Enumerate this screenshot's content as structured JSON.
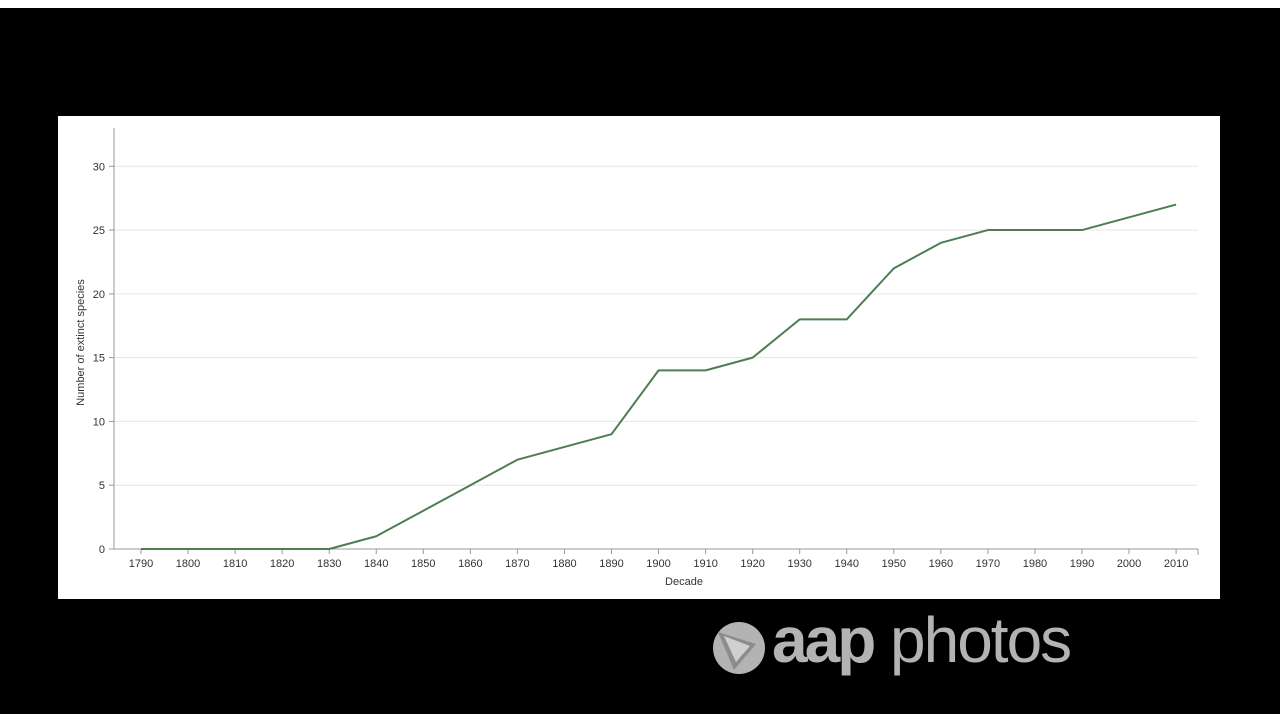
{
  "chart_data": {
    "type": "line",
    "title": "",
    "xlabel": "Decade",
    "ylabel": "Number of extinct species",
    "x": [
      "1790",
      "1800",
      "1810",
      "1820",
      "1830",
      "1840",
      "1850",
      "1860",
      "1870",
      "1880",
      "1890",
      "1900",
      "1910",
      "1920",
      "1930",
      "1940",
      "1950",
      "1960",
      "1970",
      "1980",
      "1990",
      "2000",
      "2010"
    ],
    "series": [
      {
        "values": [
          0,
          0,
          0,
          0,
          0,
          1,
          3,
          5,
          7,
          8,
          9,
          14,
          14,
          15,
          18,
          18,
          22,
          24,
          25,
          25,
          25,
          26,
          27
        ],
        "color": "#4e7d52"
      }
    ],
    "ylim": [
      0,
      33
    ],
    "yticks": [
      0,
      5,
      10,
      15,
      20,
      25,
      30
    ],
    "grid": true,
    "legend": "none"
  },
  "watermark": {
    "brand": "aap",
    "product": "photos",
    "logo_icon": "play-triangle-circle-icon"
  },
  "colors": {
    "background": "#000000",
    "panel": "#ffffff",
    "gridline": "#e6e6e6",
    "line": "#4e7d52",
    "watermark": "#b3b3b3"
  }
}
